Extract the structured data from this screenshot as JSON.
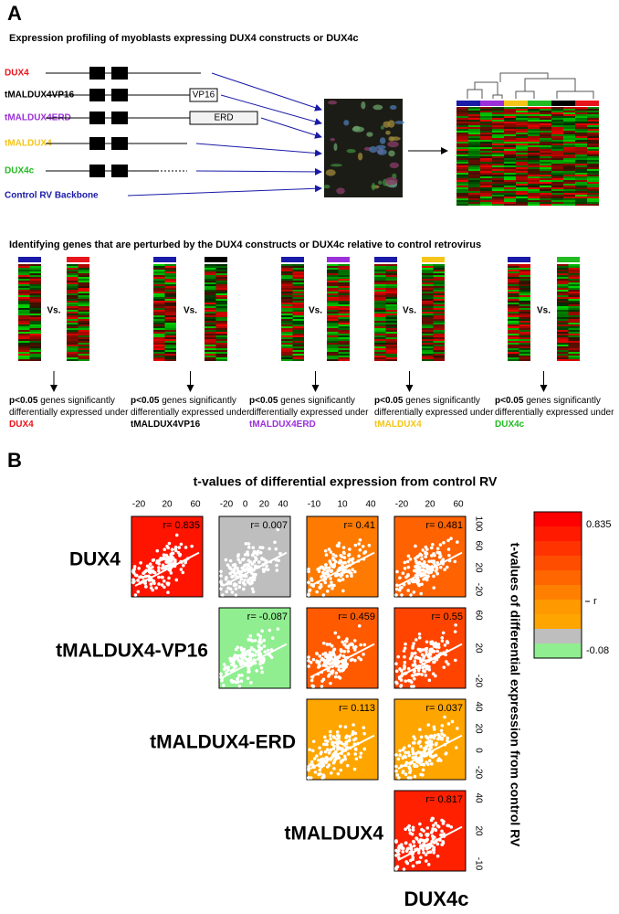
{
  "panel_a": {
    "label": "A",
    "title": "Expression profiling of myoblasts expressing DUX4 constructs or DUX4c",
    "constructs": [
      {
        "name": "DUX4",
        "color": "#e8141b"
      },
      {
        "name": "tMALDUX4VP16",
        "color": "#000000"
      },
      {
        "name": "tMALDUX4ERD",
        "color": "#9b30d9"
      },
      {
        "name": "tMALDUX4",
        "color": "#f5c518"
      },
      {
        "name": "DUX4c",
        "color": "#22bb22"
      },
      {
        "name": "Control RV Backbone",
        "color": "#1a1aa8"
      }
    ],
    "domains": {
      "vp16": "VP16",
      "erd": "ERD"
    },
    "comparison_title": "Identifying genes that are perturbed by the DUX4 constructs or DUX4c relative to control retrovirus",
    "vs": "Vs.",
    "threshold": "p<0.05",
    "result_text": "genes significantly differentially expressed under"
  },
  "panel_b": {
    "label": "B",
    "title": "t-values of differential expression from control RV",
    "y_title": "t-values of differential expression from control RV",
    "rows": [
      "DUX4",
      "tMALDUX4-VP16",
      "tMALDUX4-ERD",
      "tMALDUX4"
    ],
    "column_label": "DUX4c",
    "col_ticks": [
      [
        "-20",
        "20",
        "60"
      ],
      [
        "-20",
        "0",
        "20",
        "40"
      ],
      [
        "-10",
        "10",
        "40"
      ],
      [
        "-20",
        "20",
        "60"
      ]
    ],
    "row_ticks": [
      [
        "100",
        "60",
        "20",
        "-20"
      ],
      [
        "60",
        "20",
        "-20"
      ],
      [
        "40",
        "20",
        "0",
        "-20"
      ],
      [
        "40",
        "20",
        "-10"
      ]
    ],
    "cells": [
      [
        {
          "label": "r= 0.835",
          "color": "#ff1400"
        },
        {
          "label": "r= 0.007",
          "color": "#bebebe"
        },
        {
          "label": "r= 0.41",
          "color": "#ff7a00"
        },
        {
          "label": "r= 0.481",
          "color": "#ff6200"
        }
      ],
      [
        {
          "label": "r= -0.087",
          "color": "#90ee90"
        },
        {
          "label": "r= 0.459",
          "color": "#ff5a00"
        },
        {
          "label": "r= 0.55",
          "color": "#ff4400"
        }
      ],
      [
        {
          "label": "r= 0.113",
          "color": "#ffa500"
        },
        {
          "label": "r= 0.037",
          "color": "#ffa500"
        }
      ],
      [
        {
          "label": "r= 0.817",
          "color": "#ff2000"
        }
      ]
    ],
    "colorbar": {
      "max_label": "0.835",
      "mid_label": "r",
      "min_label": "-0.08",
      "colors": [
        "#ff0000",
        "#ff1a00",
        "#ff3300",
        "#ff4d00",
        "#ff6600",
        "#ff8000",
        "#ff9900",
        "#ffa500",
        "#bebebe",
        "#90ee90"
      ]
    }
  }
}
